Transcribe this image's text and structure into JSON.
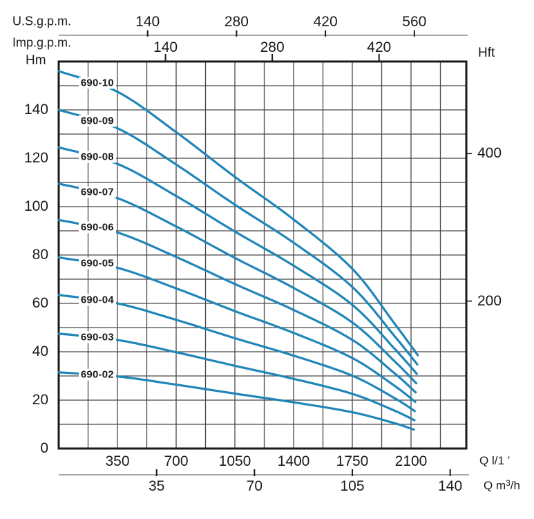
{
  "chart_data": {
    "type": "line",
    "x_unit": "l/min",
    "y_unit": "m",
    "x_range": [
      0,
      2430
    ],
    "y_range": [
      0,
      160
    ],
    "grid": "on",
    "grid_step_x_lmin": 175,
    "grid_step_y_m": 10,
    "top_axis_us": {
      "label": "U.S.g.p.m.",
      "ticks": [
        140,
        280,
        420,
        560
      ]
    },
    "top_axis_imp": {
      "label": "Imp.g.p.m.",
      "ticks": [
        140,
        280,
        420
      ]
    },
    "left_axis": {
      "label": "Hm",
      "ticks": [
        0,
        20,
        40,
        60,
        80,
        100,
        120,
        140
      ]
    },
    "right_axis": {
      "label": "Hft",
      "ticks": [
        200,
        400
      ]
    },
    "bottom_axis_lmin": {
      "label": "Q l/1 ’",
      "ticks": [
        350,
        700,
        1050,
        1400,
        1750,
        2100
      ]
    },
    "bottom_axis_m3h": {
      "label_prefix": "Q m",
      "label_sup": "3",
      "label_suffix": "/h",
      "ticks": [
        35,
        70,
        105,
        140
      ]
    },
    "colors": {
      "curve": "#2086b8",
      "grid": "#474747",
      "border": "#1a1a1a",
      "axis_line": "#8c8c8c",
      "text": "#1a1a1a"
    },
    "series": [
      {
        "name": "690-10",
        "points": [
          [
            0,
            156
          ],
          [
            350,
            147.5
          ],
          [
            700,
            130.8
          ],
          [
            1050,
            112.3
          ],
          [
            1400,
            94.7
          ],
          [
            1750,
            74.3
          ],
          [
            2000,
            51.8
          ],
          [
            2140,
            38.6
          ]
        ]
      },
      {
        "name": "690-09",
        "points": [
          [
            0,
            140
          ],
          [
            350,
            132.4
          ],
          [
            700,
            117.4
          ],
          [
            1050,
            100.8
          ],
          [
            1400,
            85.1
          ],
          [
            1750,
            66.8
          ],
          [
            2000,
            46.6
          ],
          [
            2137,
            34.8
          ]
        ]
      },
      {
        "name": "690-08",
        "points": [
          [
            0,
            124.5
          ],
          [
            350,
            117.7
          ],
          [
            700,
            104.4
          ],
          [
            1050,
            89.7
          ],
          [
            1400,
            75.6
          ],
          [
            1750,
            59.4
          ],
          [
            2000,
            41.4
          ],
          [
            2134,
            30.9
          ]
        ]
      },
      {
        "name": "690-07",
        "points": [
          [
            0,
            109.5
          ],
          [
            350,
            103.5
          ],
          [
            700,
            91.8
          ],
          [
            1050,
            78.8
          ],
          [
            1400,
            66.4
          ],
          [
            1750,
            52.1
          ],
          [
            2000,
            36.2
          ],
          [
            2131,
            27
          ]
        ]
      },
      {
        "name": "690-06",
        "points": [
          [
            0,
            94.5
          ],
          [
            350,
            89.3
          ],
          [
            700,
            79.2
          ],
          [
            1050,
            68
          ],
          [
            1400,
            57.3
          ],
          [
            1750,
            44.9
          ],
          [
            2000,
            31.2
          ],
          [
            2128,
            23.2
          ]
        ]
      },
      {
        "name": "690-05",
        "points": [
          [
            0,
            79
          ],
          [
            350,
            74.7
          ],
          [
            700,
            66.2
          ],
          [
            1050,
            56.8
          ],
          [
            1400,
            47.8
          ],
          [
            1750,
            37.4
          ],
          [
            2000,
            26
          ],
          [
            2125,
            19.3
          ]
        ]
      },
      {
        "name": "690-04",
        "points": [
          [
            0,
            63.5
          ],
          [
            350,
            60
          ],
          [
            700,
            53.2
          ],
          [
            1050,
            45.6
          ],
          [
            1400,
            38.4
          ],
          [
            1750,
            30.1
          ],
          [
            2000,
            20.9
          ],
          [
            2122,
            15.5
          ]
        ]
      },
      {
        "name": "690-03",
        "points": [
          [
            0,
            47.5
          ],
          [
            350,
            44.9
          ],
          [
            700,
            39.8
          ],
          [
            1050,
            34.2
          ],
          [
            1400,
            28.8
          ],
          [
            1750,
            22.6
          ],
          [
            2000,
            15.7
          ],
          [
            2120,
            11.7
          ]
        ]
      },
      {
        "name": "690-02",
        "points": [
          [
            0,
            31.5
          ],
          [
            350,
            29.8
          ],
          [
            700,
            26.4
          ],
          [
            1050,
            22.7
          ],
          [
            1400,
            19.1
          ],
          [
            1750,
            15
          ],
          [
            2000,
            10.5
          ],
          [
            2117,
            7.8
          ]
        ]
      }
    ]
  }
}
